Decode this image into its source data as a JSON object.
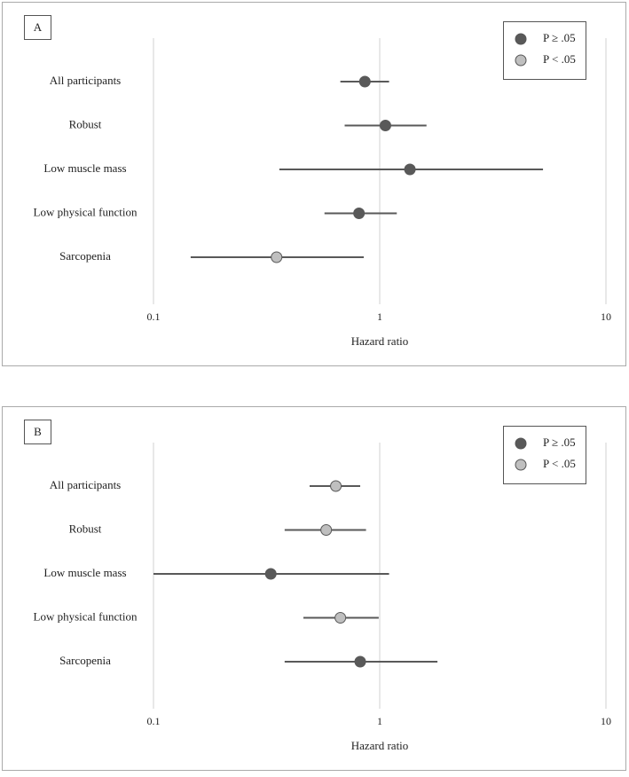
{
  "chart_data": [
    {
      "type": "forest",
      "panel": "A",
      "xlabel": "Hazard ratio",
      "xscale": "log",
      "xlim": [
        0.1,
        10
      ],
      "xticks": [
        0.1,
        1,
        10
      ],
      "grid": true,
      "categories": [
        "All participants",
        "Robust",
        "Low muscle mass",
        "Low physical function",
        "Sarcopenia"
      ],
      "values": [
        0.86,
        1.06,
        1.36,
        0.81,
        0.35
      ],
      "ci_lower": [
        0.67,
        0.7,
        0.36,
        0.57,
        0.146
      ],
      "ci_upper": [
        1.1,
        1.61,
        5.27,
        1.19,
        0.85
      ],
      "point_colors": [
        "#595959",
        "#595959",
        "#595959",
        "#595959",
        "#bfbfbf"
      ],
      "line_color": "#595959",
      "legend": {
        "position": "upper right",
        "entries": [
          {
            "name": "P ≥ .05",
            "color": "#595959"
          },
          {
            "name": "P < .05",
            "color": "#bfbfbf"
          }
        ]
      }
    },
    {
      "type": "forest",
      "panel": "B",
      "xlabel": "Hazard ratio",
      "xscale": "log",
      "xlim": [
        0.1,
        10
      ],
      "xticks": [
        0.1,
        1,
        10
      ],
      "grid": true,
      "categories": [
        "All participants",
        "Robust",
        "Low muscle mass",
        "Low physical function",
        "Sarcopenia"
      ],
      "values": [
        0.64,
        0.58,
        0.33,
        0.67,
        0.82
      ],
      "ci_lower": [
        0.49,
        0.38,
        0.1,
        0.46,
        0.38
      ],
      "ci_upper": [
        0.82,
        0.87,
        1.1,
        0.99,
        1.8
      ],
      "point_colors": [
        "#bfbfbf",
        "#bfbfbf",
        "#595959",
        "#bfbfbf",
        "#595959"
      ],
      "line_color": "#595959",
      "legend": {
        "position": "upper right",
        "entries": [
          {
            "name": "P ≥ .05",
            "color": "#595959"
          },
          {
            "name": "P < .05",
            "color": "#bfbfbf"
          }
        ]
      }
    }
  ]
}
